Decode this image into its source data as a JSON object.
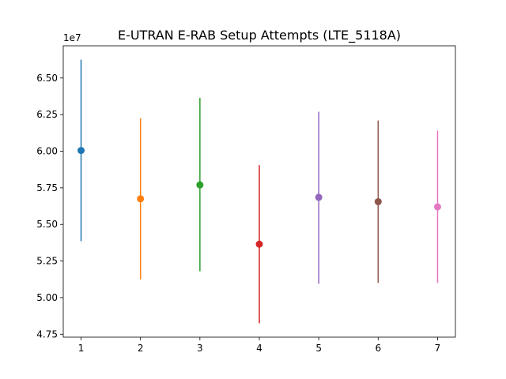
{
  "chart_data": {
    "type": "scatter",
    "title": "E-UTRAN E-RAB Setup Attempts (LTE_5118A)",
    "xlabel": "",
    "ylabel": "",
    "y_offset_label": "1e7",
    "y_scale_factor": 10000000,
    "xlim": [
      0.7,
      7.3
    ],
    "ylim": [
      4.73,
      6.72
    ],
    "xticks": [
      1,
      2,
      3,
      4,
      5,
      6,
      7
    ],
    "xtick_labels": [
      "1",
      "2",
      "3",
      "4",
      "5",
      "6",
      "7"
    ],
    "yticks": [
      4.75,
      5.0,
      5.25,
      5.5,
      5.75,
      6.0,
      6.25,
      6.5
    ],
    "ytick_labels": [
      "4.75",
      "5.00",
      "5.25",
      "5.50",
      "5.75",
      "6.00",
      "6.25",
      "6.50"
    ],
    "grid": false,
    "legend": "none",
    "points": [
      {
        "x": 1,
        "y": 6.005,
        "low": 5.385,
        "high": 6.625,
        "color": "#1f77b4"
      },
      {
        "x": 2,
        "y": 5.675,
        "low": 5.125,
        "high": 6.225,
        "color": "#ff7f0e"
      },
      {
        "x": 3,
        "y": 5.77,
        "low": 5.18,
        "high": 6.365,
        "color": "#2ca02c"
      },
      {
        "x": 4,
        "y": 5.365,
        "low": 4.825,
        "high": 5.905,
        "color": "#d62728"
      },
      {
        "x": 5,
        "y": 5.685,
        "low": 5.095,
        "high": 6.27,
        "color": "#9467bd"
      },
      {
        "x": 6,
        "y": 5.655,
        "low": 5.1,
        "high": 6.21,
        "color": "#8c564b"
      },
      {
        "x": 7,
        "y": 5.62,
        "low": 5.1,
        "high": 6.14,
        "color": "#e377c2"
      }
    ]
  }
}
